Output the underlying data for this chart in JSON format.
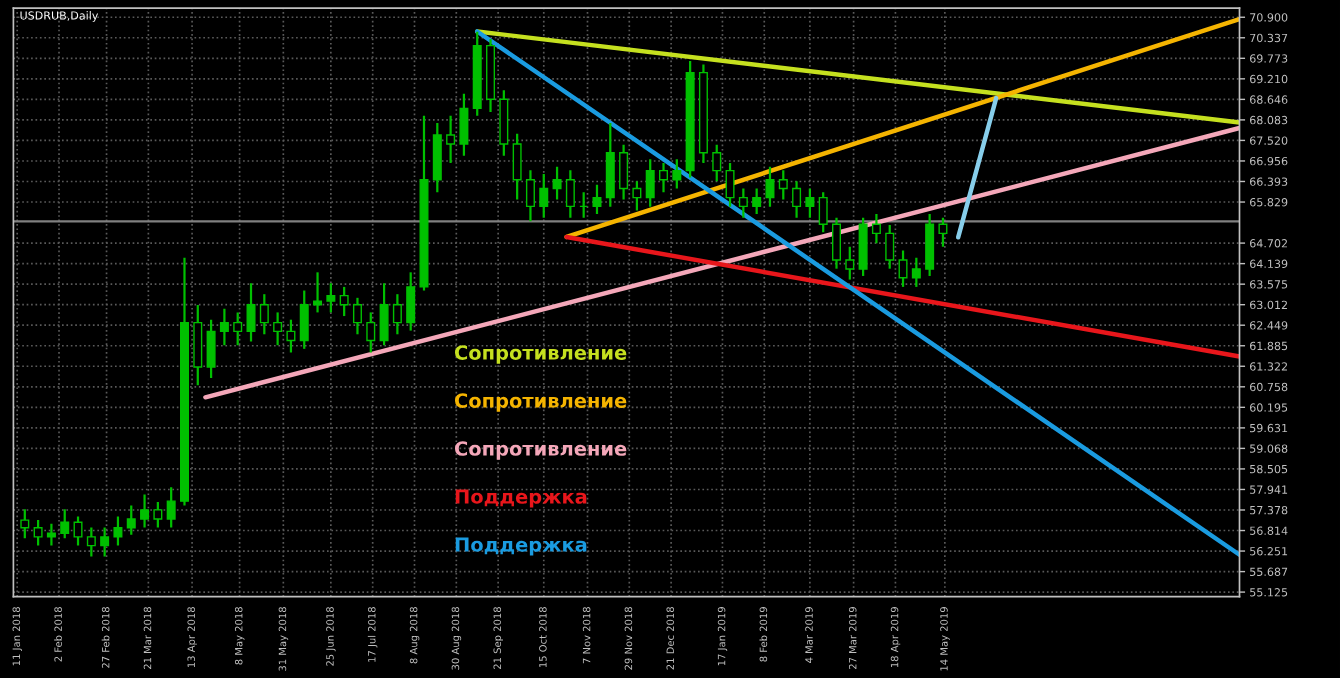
{
  "chart_data": {
    "type": "candlestick",
    "title": "USDRUB,Daily",
    "color": "#00c000",
    "x": [
      "2018-01-15",
      "2018-01-22",
      "2018-01-29",
      "2018-02-05",
      "2018-02-12",
      "2018-02-19",
      "2018-02-26",
      "2018-03-05",
      "2018-03-12",
      "2018-03-19",
      "2018-03-26",
      "2018-04-02",
      "2018-04-09",
      "2018-04-16",
      "2018-04-23",
      "2018-04-30",
      "2018-05-07",
      "2018-05-14",
      "2018-05-21",
      "2018-05-28",
      "2018-06-04",
      "2018-06-11",
      "2018-06-18",
      "2018-06-25",
      "2018-07-02",
      "2018-07-09",
      "2018-07-16",
      "2018-07-23",
      "2018-07-30",
      "2018-08-06",
      "2018-08-13",
      "2018-08-20",
      "2018-08-27",
      "2018-09-03",
      "2018-09-10",
      "2018-09-17",
      "2018-09-24",
      "2018-10-01",
      "2018-10-08",
      "2018-10-15",
      "2018-10-22",
      "2018-10-29",
      "2018-11-05",
      "2018-11-12",
      "2018-11-19",
      "2018-11-26",
      "2018-12-03",
      "2018-12-10",
      "2018-12-17",
      "2018-12-24",
      "2018-12-31",
      "2019-01-07",
      "2019-01-14",
      "2019-01-21",
      "2019-01-28",
      "2019-02-04",
      "2019-02-11",
      "2019-02-18",
      "2019-02-25",
      "2019-03-04",
      "2019-03-11",
      "2019-03-18",
      "2019-03-25",
      "2019-04-01",
      "2019-04-08",
      "2019-04-15",
      "2019-04-22",
      "2019-04-29",
      "2019-05-06",
      "2019-05-13"
    ],
    "ohlc": [
      [
        57.1,
        57.4,
        56.6,
        56.89
      ],
      [
        56.89,
        57.1,
        56.4,
        56.64
      ],
      [
        56.64,
        57.0,
        56.4,
        56.74
      ],
      [
        56.74,
        57.4,
        56.6,
        57.04
      ],
      [
        57.04,
        57.2,
        56.4,
        56.64
      ],
      [
        56.64,
        56.9,
        56.1,
        56.4
      ],
      [
        56.4,
        56.9,
        56.1,
        56.64
      ],
      [
        56.64,
        57.2,
        56.4,
        56.89
      ],
      [
        56.89,
        57.5,
        56.7,
        57.13
      ],
      [
        57.13,
        57.8,
        56.9,
        57.38
      ],
      [
        57.38,
        57.6,
        56.9,
        57.13
      ],
      [
        57.13,
        58.0,
        56.9,
        57.62
      ],
      [
        57.62,
        64.3,
        57.5,
        62.52
      ],
      [
        62.52,
        63.0,
        60.8,
        61.3
      ],
      [
        61.3,
        62.6,
        61.0,
        62.28
      ],
      [
        62.28,
        62.9,
        61.9,
        62.52
      ],
      [
        62.52,
        62.8,
        61.9,
        62.28
      ],
      [
        62.28,
        63.6,
        62.0,
        63.01
      ],
      [
        63.01,
        63.3,
        62.2,
        62.52
      ],
      [
        62.52,
        62.8,
        61.9,
        62.28
      ],
      [
        62.28,
        62.6,
        61.7,
        62.03
      ],
      [
        62.03,
        63.4,
        61.8,
        63.01
      ],
      [
        63.01,
        63.9,
        62.8,
        63.11
      ],
      [
        63.11,
        63.6,
        62.8,
        63.26
      ],
      [
        63.26,
        63.5,
        62.7,
        63.01
      ],
      [
        63.01,
        63.2,
        62.2,
        62.52
      ],
      [
        62.52,
        62.8,
        61.7,
        62.03
      ],
      [
        62.03,
        63.6,
        61.9,
        63.01
      ],
      [
        63.01,
        63.3,
        62.2,
        62.52
      ],
      [
        62.52,
        63.9,
        62.3,
        63.5
      ],
      [
        63.5,
        68.2,
        63.4,
        66.44
      ],
      [
        66.44,
        68.0,
        66.1,
        67.67
      ],
      [
        67.67,
        68.2,
        66.9,
        67.42
      ],
      [
        67.42,
        68.8,
        67.1,
        68.4
      ],
      [
        68.4,
        70.5,
        68.2,
        70.12
      ],
      [
        70.12,
        70.3,
        68.3,
        68.65
      ],
      [
        68.65,
        68.9,
        67.1,
        67.42
      ],
      [
        67.42,
        67.7,
        65.9,
        66.44
      ],
      [
        66.44,
        66.7,
        65.3,
        65.71
      ],
      [
        65.71,
        66.6,
        65.4,
        66.2
      ],
      [
        66.2,
        66.8,
        65.9,
        66.44
      ],
      [
        66.44,
        66.7,
        65.4,
        65.71
      ],
      [
        65.71,
        66.1,
        65.4,
        65.71
      ],
      [
        65.71,
        66.3,
        65.5,
        65.95
      ],
      [
        65.95,
        68.0,
        65.7,
        67.18
      ],
      [
        67.18,
        67.4,
        65.9,
        66.2
      ],
      [
        66.2,
        66.4,
        65.6,
        65.95
      ],
      [
        65.95,
        67.0,
        65.7,
        66.69
      ],
      [
        66.69,
        66.9,
        66.1,
        66.44
      ],
      [
        66.44,
        67.0,
        66.2,
        66.69
      ],
      [
        66.69,
        69.7,
        66.5,
        69.38
      ],
      [
        69.38,
        69.6,
        66.9,
        67.18
      ],
      [
        67.18,
        67.4,
        66.4,
        66.69
      ],
      [
        66.69,
        66.9,
        65.7,
        65.95
      ],
      [
        65.95,
        66.2,
        65.4,
        65.71
      ],
      [
        65.71,
        66.2,
        65.5,
        65.95
      ],
      [
        65.95,
        66.8,
        65.7,
        66.44
      ],
      [
        66.44,
        66.7,
        65.9,
        66.2
      ],
      [
        66.2,
        66.4,
        65.4,
        65.71
      ],
      [
        65.71,
        66.2,
        65.4,
        65.95
      ],
      [
        65.95,
        66.1,
        65.0,
        65.22
      ],
      [
        65.22,
        65.4,
        64.0,
        64.24
      ],
      [
        64.24,
        64.6,
        63.7,
        63.99
      ],
      [
        63.99,
        65.4,
        63.8,
        65.22
      ],
      [
        65.22,
        65.5,
        64.7,
        64.97
      ],
      [
        64.97,
        65.2,
        64.0,
        64.24
      ],
      [
        64.24,
        64.5,
        63.5,
        63.75
      ],
      [
        63.75,
        64.3,
        63.5,
        63.99
      ],
      [
        63.99,
        65.5,
        63.8,
        65.22
      ],
      [
        65.22,
        65.4,
        64.6,
        64.97
      ]
    ],
    "series": [
      {
        "type": "line",
        "name": "Сопротивление",
        "color": "#c5e01f",
        "x": [
          "2018-09-10",
          "2019-10-16"
        ],
        "values": [
          70.51,
          68.01
        ]
      },
      {
        "type": "line",
        "name": "Сопротивление",
        "color": "#f5b400",
        "x": [
          "2018-10-27",
          "2019-10-16"
        ],
        "values": [
          64.87,
          70.85
        ]
      },
      {
        "type": "line",
        "name": "Сопротивление",
        "color": "#f4a7b9",
        "x": [
          "2018-04-20",
          "2019-10-16"
        ],
        "values": [
          60.47,
          67.86
        ]
      },
      {
        "type": "line",
        "name": "Поддержка",
        "color": "#e8161b",
        "x": [
          "2018-10-27",
          "2019-10-16"
        ],
        "values": [
          64.87,
          61.59
        ]
      },
      {
        "type": "line",
        "name": "Поддержка",
        "color": "#1a9be0",
        "x": [
          "2018-09-10",
          "2019-10-16"
        ],
        "values": [
          70.51,
          56.15
        ]
      },
      {
        "type": "line",
        "color": "#87ceeb",
        "x": [
          "2019-05-21",
          "2019-06-10"
        ],
        "values": [
          64.86,
          68.68
        ]
      }
    ],
    "ref_lines": [
      {
        "axis": "y",
        "value": 65.3,
        "color": "#808080"
      }
    ],
    "xlim": [
      "2018-01-09",
      "2019-10-16"
    ],
    "xticks": [
      {
        "value": "2018-01-11",
        "label": "11 Jan 2018"
      },
      {
        "value": "2018-02-02",
        "label": "2 Feb 2018"
      },
      {
        "value": "2018-02-27",
        "label": "27 Feb 2018"
      },
      {
        "value": "2018-03-21",
        "label": "21 Mar 2018"
      },
      {
        "value": "2018-04-13",
        "label": "13 Apr 2018"
      },
      {
        "value": "2018-05-08",
        "label": "8 May 2018"
      },
      {
        "value": "2018-05-31",
        "label": "31 May 2018"
      },
      {
        "value": "2018-06-25",
        "label": "25 Jun 2018"
      },
      {
        "value": "2018-07-17",
        "label": "17 Jul 2018"
      },
      {
        "value": "2018-08-08",
        "label": "8 Aug 2018"
      },
      {
        "value": "2018-08-30",
        "label": "30 Aug 2018"
      },
      {
        "value": "2018-09-21",
        "label": "21 Sep 2018"
      },
      {
        "value": "2018-10-15",
        "label": "15 Oct 2018"
      },
      {
        "value": "2018-11-07",
        "label": "7 Nov 2018"
      },
      {
        "value": "2018-11-29",
        "label": "29 Nov 2018"
      },
      {
        "value": "2018-12-21",
        "label": "21 Dec 2018"
      },
      {
        "value": "2019-01-17",
        "label": "17 Jan 2019"
      },
      {
        "value": "2019-02-08",
        "label": "8 Feb 2019"
      },
      {
        "value": "2019-03-04",
        "label": "4 Mar 2019"
      },
      {
        "value": "2019-03-27",
        "label": "27 Mar 2019"
      },
      {
        "value": "2019-04-18",
        "label": "18 Apr 2019"
      },
      {
        "value": "2019-05-14",
        "label": "14 May 2019"
      }
    ],
    "ylim": [
      55.0,
      71.15
    ],
    "yticks": [
      {
        "value": 70.9,
        "label": "70.900"
      },
      {
        "value": 70.337,
        "label": "70.337"
      },
      {
        "value": 69.773,
        "label": "69.773"
      },
      {
        "value": 69.21,
        "label": "69.210"
      },
      {
        "value": 68.646,
        "label": "68.646"
      },
      {
        "value": 68.083,
        "label": "68.083"
      },
      {
        "value": 67.52,
        "label": "67.520"
      },
      {
        "value": 66.956,
        "label": "66.956"
      },
      {
        "value": 66.393,
        "label": "66.393"
      },
      {
        "value": 65.829,
        "label": "65.829"
      },
      {
        "value": 64.702,
        "label": "64.702"
      },
      {
        "value": 64.139,
        "label": "64.139"
      },
      {
        "value": 63.575,
        "label": "63.575"
      },
      {
        "value": 63.012,
        "label": "63.012"
      },
      {
        "value": 62.449,
        "label": "62.449"
      },
      {
        "value": 61.885,
        "label": "61.885"
      },
      {
        "value": 61.322,
        "label": "61.322"
      },
      {
        "value": 60.758,
        "label": "60.758"
      },
      {
        "value": 60.195,
        "label": "60.195"
      },
      {
        "value": 59.631,
        "label": "59.631"
      },
      {
        "value": 59.068,
        "label": "59.068"
      },
      {
        "value": 58.505,
        "label": "58.505"
      },
      {
        "value": 57.941,
        "label": "57.941"
      },
      {
        "value": 57.378,
        "label": "57.378"
      },
      {
        "value": 56.814,
        "label": "56.814"
      },
      {
        "value": 56.251,
        "label": "56.251"
      },
      {
        "value": 55.687,
        "label": "55.687"
      },
      {
        "value": 55.125,
        "label": "55.125"
      }
    ],
    "grid": true,
    "legend": "bottom"
  }
}
